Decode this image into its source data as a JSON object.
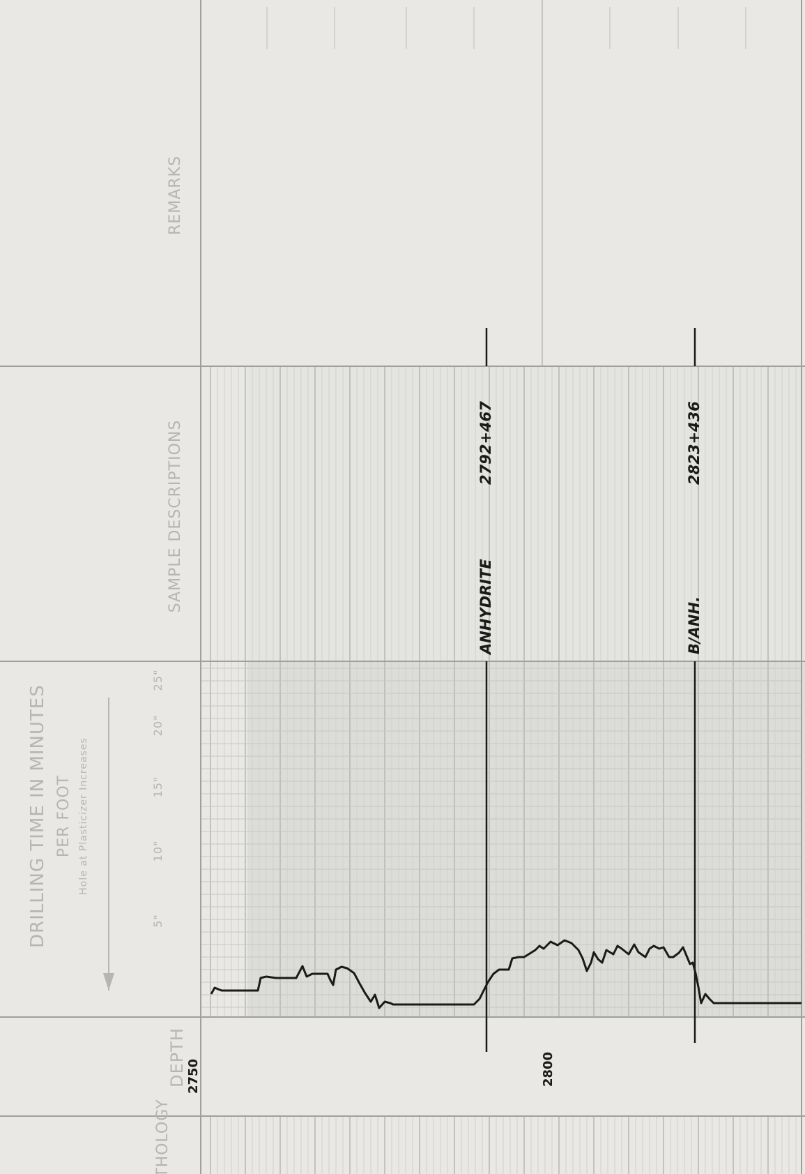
{
  "headers": {
    "lithology": "LITHOLOGY",
    "depth": "DEPTH",
    "drilling_time_line1": "DRILLING TIME IN MINUTES",
    "drilling_time_line2": "PER FOOT",
    "drilling_time_line3": "Hole at Plasticizer Increases",
    "scale_5": "5\"",
    "scale_10": "10\"",
    "scale_15": "15\"",
    "scale_20": "20\"",
    "scale_25": "25\"",
    "sample_descriptions": "SAMPLE DESCRIPTIONS",
    "remarks": "REMARKS"
  },
  "depth_marks": [
    "2750",
    "2800"
  ],
  "formation_tops": [
    {
      "name": "ANHYDRITE",
      "value": "2792+467"
    },
    {
      "name": "B/ANH.",
      "value": "2823+436"
    }
  ],
  "colors": {
    "paper": "#e9e8e4",
    "grid": "#c4c4c0",
    "ink": "#1a1a1a",
    "printed": "#b5b5b2"
  }
}
